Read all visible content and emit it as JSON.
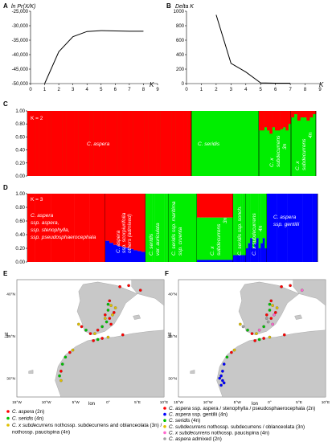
{
  "chart_data": [
    {
      "type": "line",
      "panel": "A",
      "ylabel": "ln Pr(X/K)",
      "xlabel": "K",
      "x": [
        1,
        2,
        3,
        4,
        5,
        6,
        7,
        8
      ],
      "y": [
        -50000,
        -39000,
        -33800,
        -32000,
        -31700,
        -31800,
        -31900,
        -31900
      ],
      "xlim": [
        0,
        9
      ],
      "ylim": [
        -50000,
        -25000
      ],
      "xticks": [
        "0",
        "1",
        "2",
        "3",
        "4",
        "5",
        "6",
        "7",
        "8",
        "9"
      ],
      "yticks": [
        "-25,000",
        "-30,000",
        "-35,000",
        "-40,000",
        "-45,000",
        "-50,000"
      ]
    },
    {
      "type": "line",
      "panel": "B",
      "ylabel": "Delta K",
      "xlabel": "K",
      "x": [
        2,
        3,
        4,
        5,
        6,
        7
      ],
      "y": [
        950,
        280,
        160,
        10,
        5,
        5
      ],
      "xlim": [
        0,
        9
      ],
      "ylim": [
        0,
        1000
      ],
      "xticks": [
        "0",
        "1",
        "2",
        "3",
        "4",
        "5",
        "6",
        "7",
        "8",
        "9"
      ],
      "yticks": [
        "1000",
        "800",
        "600",
        "400",
        "200",
        "0"
      ]
    },
    {
      "type": "bar",
      "panel": "C",
      "k_label": "K = 2",
      "ylim": [
        0,
        1
      ],
      "yticks": [
        "1.00",
        "0.80",
        "0.60",
        "0.40",
        "0.20",
        "0.00"
      ],
      "series": [
        {
          "name": "red",
          "color": "#ff0000"
        },
        {
          "name": "green",
          "color": "#00ee00"
        }
      ],
      "groups": [
        {
          "label": "C. aspera",
          "n": 42,
          "red_fraction": 1.0
        },
        {
          "label": "C. seridis",
          "n": 25,
          "red_fraction": 0.0
        },
        {
          "label": "C. x subdecurrens 3n",
          "n": 12,
          "red_fraction": 0.28
        },
        {
          "label": "C. x subdecurrens 4n",
          "n": 8,
          "red_fraction": 0.1
        }
      ]
    },
    {
      "type": "bar",
      "panel": "D",
      "k_label": "K = 3",
      "ylim": [
        0,
        1
      ],
      "yticks": [
        "1.00",
        "0.80",
        "0.60",
        "0.40",
        "0.20",
        "0.00"
      ],
      "series": [
        {
          "name": "red",
          "color": "#ff0000"
        },
        {
          "name": "green",
          "color": "#00ee00"
        },
        {
          "name": "blue",
          "color": "#0000ff"
        }
      ],
      "groups": [
        {
          "label": "C. aspera ssp. aspera, ssp. stenophylla, ssp. pseudosphaerocephala",
          "red": 1.0,
          "green": 0.0,
          "blue": 0.0
        },
        {
          "label": "C. aspera ssp. scorpiurifolia, others (admixed)",
          "red": 0.82,
          "green": 0.0,
          "blue": 0.18
        },
        {
          "label": "C. seridis var. auriculata",
          "red": 0.0,
          "green": 1.0,
          "blue": 0.0
        },
        {
          "label": "C. seridis ssp. maritima ssp. cruenta",
          "red": 0.0,
          "green": 1.0,
          "blue": 0.0
        },
        {
          "label": "C. x subdecurrens 3n",
          "red": 0.35,
          "green": 0.62,
          "blue": 0.03
        },
        {
          "label": "C. seridis ssp. sonch.",
          "red": 0.0,
          "green": 0.9,
          "blue": 0.1
        },
        {
          "label": "C. x subdecurrens 4n",
          "red": 0.0,
          "green": 0.72,
          "blue": 0.28
        },
        {
          "label": "C. aspera ssp. gentilii",
          "red": 0.0,
          "green": 0.0,
          "blue": 1.0
        }
      ]
    },
    {
      "type": "scatter",
      "panel": "E",
      "xlabel": "lon",
      "ylabel": "lat",
      "xticks": [
        "15°W",
        "10°W",
        "5°W",
        "0°",
        "5°E",
        "10°E"
      ],
      "yticks": [
        "40°N",
        "35°N",
        "30°N"
      ]
    },
    {
      "type": "scatter",
      "panel": "F",
      "xlabel": "lon",
      "ylabel": "lat",
      "xticks": [
        "15°W",
        "10°W",
        "5°W",
        "0°",
        "5°E",
        "10°E"
      ],
      "yticks": [
        "40°N",
        "35°N",
        "30°N"
      ]
    }
  ],
  "panels": {
    "a": "A",
    "b": "B",
    "c": "C",
    "d": "D",
    "e": "E",
    "f": "F"
  },
  "plot_a": {
    "ylabel": "ln Pr(X/K)",
    "xlabel": "K"
  },
  "plot_b": {
    "ylabel": "Delta K",
    "xlabel": "K"
  },
  "struct_c": {
    "k_label": "K = 2",
    "lbl_aspera": "C. aspera",
    "lbl_seridis": "C. seridis",
    "lbl_sub3_a": "C. x",
    "lbl_sub3_b": "subdecurrens",
    "lbl_sub3_c": "3n",
    "lbl_sub4_a": "C. x",
    "lbl_sub4_b": "subdecurrens",
    "lbl_sub4_c": "4n"
  },
  "struct_d": {
    "k_label": "K = 3",
    "g1_l1": "C. aspera",
    "g1_l2": "ssp. aspera,",
    "g1_l3": "ssp. stenophylla,",
    "g1_l4": "ssp. pseudosphaerocephala",
    "g2_l1": "C. aspera",
    "g2_l2": "ssp. scorpiurifolia",
    "g2_l3": "others (admixed)",
    "g3_l1": "C. seridis",
    "g3_l2": "var. auriculata",
    "g4_l1": "C. seridis ssp. maritima",
    "g4_l2": "ssp. cruenta",
    "g5_l1": "C. x",
    "g5_l2": "subdecurrens",
    "g5_l3": "3n",
    "g6_l1": "C. seridis ssp. sonch.",
    "g7_l1": "C. x subdecurrens",
    "g7_l2": "4n",
    "g8_l1": "C. aspera",
    "g8_l2": "ssp. gentilii"
  },
  "map": {
    "xlabel": "lon",
    "ylabel": "lat",
    "lon_ticks": [
      "15°W",
      "10°W",
      "5°W",
      "0°",
      "5°E",
      "10°E"
    ],
    "lat_ticks": [
      "40°N",
      "35°N",
      "30°N"
    ]
  },
  "legend_e": [
    {
      "sp": "C. aspera",
      "rest": " (2n)",
      "color": "#ff0000"
    },
    {
      "sp": "C. seridis",
      "rest": " (4n)",
      "color": "#00c000"
    },
    {
      "sp": "C. x subdecurrens",
      "rest": " nothossp. subdecurrens and oblanceolata (3n) /",
      "color": "#e0c000"
    },
    {
      "sp": "",
      "rest": "nothossp. paucispina (4n)",
      "color": ""
    }
  ],
  "legend_f": [
    {
      "sp": "C. aspera",
      "rest": " ssp. aspera / stenophylla / pseudosphaerocephala (2n)",
      "color": "#ff0000"
    },
    {
      "sp": "C. aspera",
      "rest": " ssp. gentilii (4n)",
      "color": "#0000ff"
    },
    {
      "sp": "C. seridis",
      "rest": " (4n)",
      "color": "#00c000"
    },
    {
      "sp": "C. subdecurrens",
      "rest": " nothossp. subdecurrens / oblanceolata (3n)",
      "color": "#e0c000"
    },
    {
      "sp": "C. x subdecurrens",
      "rest": " nothossp. paucispina (4n)",
      "color": "#ff66cc"
    },
    {
      "sp": "C. aspera",
      "rest": " admixed (2n)",
      "color": "#a0a0a0"
    }
  ],
  "colors": {
    "red": "#ff0000",
    "green": "#00ee00",
    "blue": "#0000ff",
    "yellow": "#e0c000",
    "land": "#c8c8c8",
    "sea": "#ffffff"
  }
}
